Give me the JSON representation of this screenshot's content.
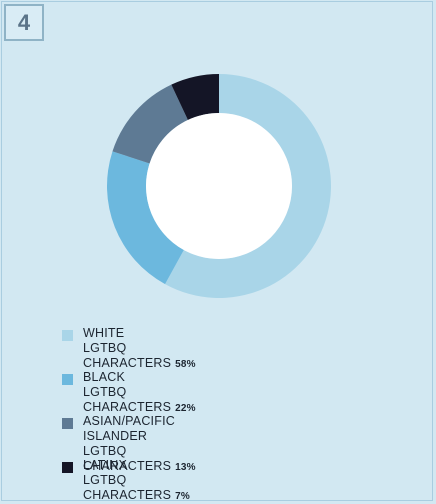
{
  "panel": {
    "number": "4"
  },
  "chart_data": {
    "type": "pie",
    "style": "donut",
    "slices": [
      {
        "line1": "WHITE",
        "line2": "LGTBQ CHARACTERS",
        "label": "WHITE LGTBQ CHARACTERS",
        "value": 58,
        "display": "58%",
        "color": "#a9d5e8"
      },
      {
        "line1": "BLACK",
        "line2": "LGTBQ CHARACTERS",
        "label": "BLACK LGTBQ CHARACTERS",
        "value": 22,
        "display": "22%",
        "color": "#6cb8de"
      },
      {
        "line1": "ASIAN/PACIFIC ISLANDER",
        "line2": "LGTBQ CHARACTERS",
        "label": "ASIAN/PACIFIC ISLANDER LGTBQ CHARACTERS",
        "value": 13,
        "display": "13%",
        "color": "#5e7a94"
      },
      {
        "line1": "LATINX",
        "line2": "LGTBQ CHARACTERS",
        "label": "LATINX LGTBQ CHARACTERS",
        "value": 7,
        "display": "7%",
        "color": "#141526"
      }
    ],
    "legend_position": "bottom"
  }
}
